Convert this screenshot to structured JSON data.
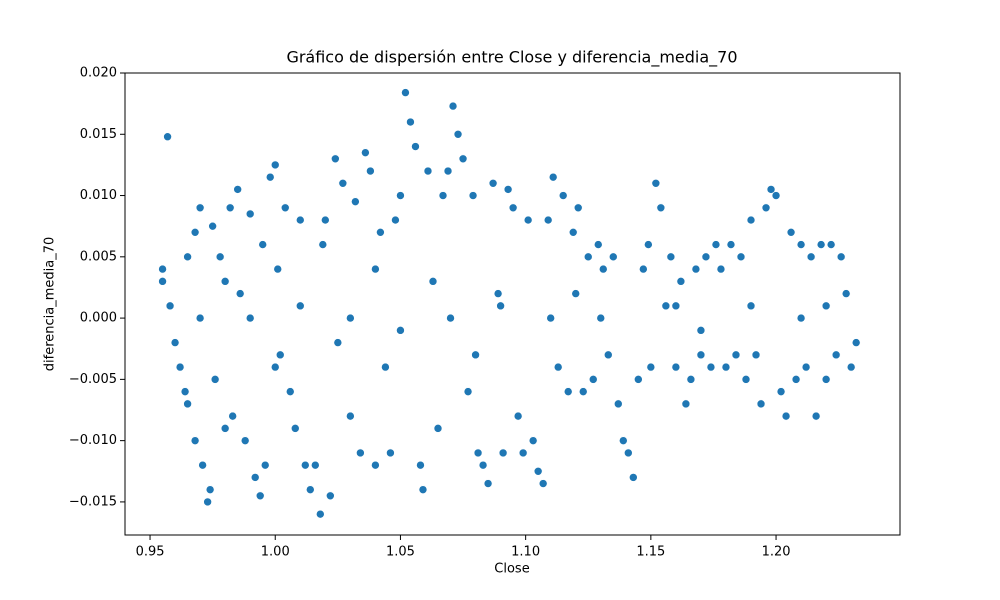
{
  "chart_data": {
    "type": "scatter",
    "title": "Gráfico de dispersión entre Close y diferencia_media_70",
    "x_label": "Close",
    "y_label": "diferencia_media_70",
    "color": "#1f77b4",
    "xlim": [
      0.94,
      1.2495
    ],
    "ylim": [
      -0.0177,
      0.02
    ],
    "xticks": [
      0.95,
      {
        "value": 1.0,
        "label": "1.00"
      },
      1.05,
      {
        "value": 1.1,
        "label": "1.10"
      },
      1.15,
      {
        "value": 1.2,
        "label": "1.20"
      }
    ],
    "yticks": [
      {
        "value": -0.015,
        "label": "−0.015"
      },
      {
        "value": -0.01,
        "label": "−0.010"
      },
      {
        "value": -0.005,
        "label": "−0.005"
      },
      {
        "value": 0,
        "label": "0.000"
      },
      0.005,
      {
        "value": 0.01,
        "label": "0.010"
      },
      {
        "value": 0.015,
        "label": "0.015"
      },
      {
        "value": 0.02,
        "label": "0.020"
      }
    ],
    "x": [
      0.955,
      0.955,
      0.957,
      0.958,
      0.96,
      0.962,
      0.964,
      0.965,
      0.965,
      0.968,
      0.968,
      0.97,
      0.971,
      0.973,
      0.974,
      0.975,
      0.976,
      0.978,
      0.98,
      0.982,
      0.983,
      0.985,
      0.986,
      0.988,
      0.99,
      0.992,
      0.994,
      0.995,
      0.996,
      0.998,
      1.0,
      1.001,
      1.002,
      1.004,
      1.006,
      1.008,
      1.01,
      1.012,
      1.014,
      1.016,
      1.018,
      1.019,
      1.02,
      1.022,
      1.024,
      1.025,
      1.027,
      1.03,
      1.032,
      1.034,
      1.036,
      1.038,
      1.04,
      1.042,
      1.044,
      1.046,
      1.048,
      1.05,
      1.052,
      1.054,
      1.056,
      1.058,
      1.059,
      1.061,
      1.063,
      1.065,
      1.067,
      1.069,
      1.071,
      1.073,
      1.075,
      1.077,
      1.079,
      1.081,
      1.083,
      1.085,
      1.087,
      1.089,
      1.091,
      1.093,
      1.095,
      1.097,
      1.099,
      1.101,
      1.103,
      1.105,
      1.107,
      1.109,
      1.111,
      1.113,
      1.115,
      1.117,
      1.119,
      1.121,
      1.123,
      1.125,
      1.127,
      1.129,
      1.131,
      1.133,
      1.135,
      1.137,
      1.139,
      1.141,
      1.143,
      1.145,
      1.147,
      1.149,
      1.15,
      1.152,
      1.154,
      1.156,
      1.158,
      1.16,
      1.162,
      1.164,
      1.166,
      1.168,
      1.17,
      1.172,
      1.174,
      1.176,
      1.178,
      1.18,
      1.182,
      1.184,
      1.186,
      1.188,
      1.19,
      1.192,
      1.194,
      1.196,
      1.198,
      1.2,
      1.202,
      1.204,
      1.206,
      1.208,
      1.21,
      1.212,
      1.214,
      1.216,
      1.218,
      1.22,
      1.222,
      1.224,
      1.226,
      1.228,
      1.23,
      1.232,
      0.97,
      0.99,
      1.01,
      1.03,
      1.05,
      1.07,
      1.09,
      1.11,
      1.13,
      1.16,
      1.19,
      1.21,
      0.98,
      1.0,
      1.04,
      1.08,
      1.12,
      1.17,
      1.22
    ],
    "values": [
      0.004,
      0.003,
      0.0148,
      0.001,
      -0.002,
      -0.004,
      -0.006,
      0.005,
      -0.007,
      0.007,
      -0.01,
      0.009,
      -0.012,
      -0.015,
      -0.014,
      0.0075,
      -0.005,
      0.005,
      -0.009,
      0.009,
      -0.008,
      0.0105,
      0.002,
      -0.01,
      0.0085,
      -0.013,
      -0.0145,
      0.006,
      -0.012,
      0.0115,
      0.0125,
      0.004,
      -0.003,
      0.009,
      -0.006,
      -0.009,
      0.008,
      -0.012,
      -0.014,
      -0.012,
      -0.016,
      0.006,
      0.008,
      -0.0145,
      0.013,
      -0.002,
      0.011,
      -0.008,
      0.0095,
      -0.011,
      0.0135,
      0.012,
      -0.012,
      0.007,
      -0.004,
      -0.011,
      0.008,
      0.01,
      0.0184,
      0.016,
      0.014,
      -0.012,
      -0.014,
      0.012,
      0.003,
      -0.009,
      0.01,
      0.012,
      0.0173,
      0.015,
      0.013,
      -0.006,
      0.01,
      -0.011,
      -0.012,
      -0.0135,
      0.011,
      0.002,
      -0.011,
      0.0105,
      0.009,
      -0.008,
      -0.011,
      0.008,
      -0.01,
      -0.0125,
      -0.0135,
      0.008,
      0.0115,
      -0.004,
      0.01,
      -0.006,
      0.007,
      0.009,
      -0.006,
      0.005,
      -0.005,
      0.006,
      0.004,
      -0.003,
      0.005,
      -0.007,
      -0.01,
      -0.011,
      -0.013,
      -0.005,
      0.004,
      0.006,
      -0.004,
      0.011,
      0.009,
      0.001,
      0.005,
      -0.004,
      0.003,
      -0.007,
      -0.005,
      0.004,
      -0.003,
      0.005,
      -0.004,
      0.006,
      0.004,
      -0.004,
      0.006,
      -0.003,
      0.005,
      -0.005,
      0.008,
      -0.003,
      -0.007,
      0.009,
      0.0105,
      0.01,
      -0.006,
      -0.008,
      0.007,
      -0.005,
      0.006,
      -0.004,
      0.005,
      -0.008,
      0.006,
      -0.005,
      0.006,
      -0.003,
      0.005,
      0.002,
      -0.004,
      -0.002,
      0.0,
      0.0,
      0.001,
      0.0,
      -0.001,
      0.0,
      0.001,
      0.0,
      0.0,
      0.001,
      0.001,
      0.0,
      0.003,
      -0.004,
      0.004,
      -0.003,
      0.002,
      -0.001,
      0.001
    ]
  }
}
